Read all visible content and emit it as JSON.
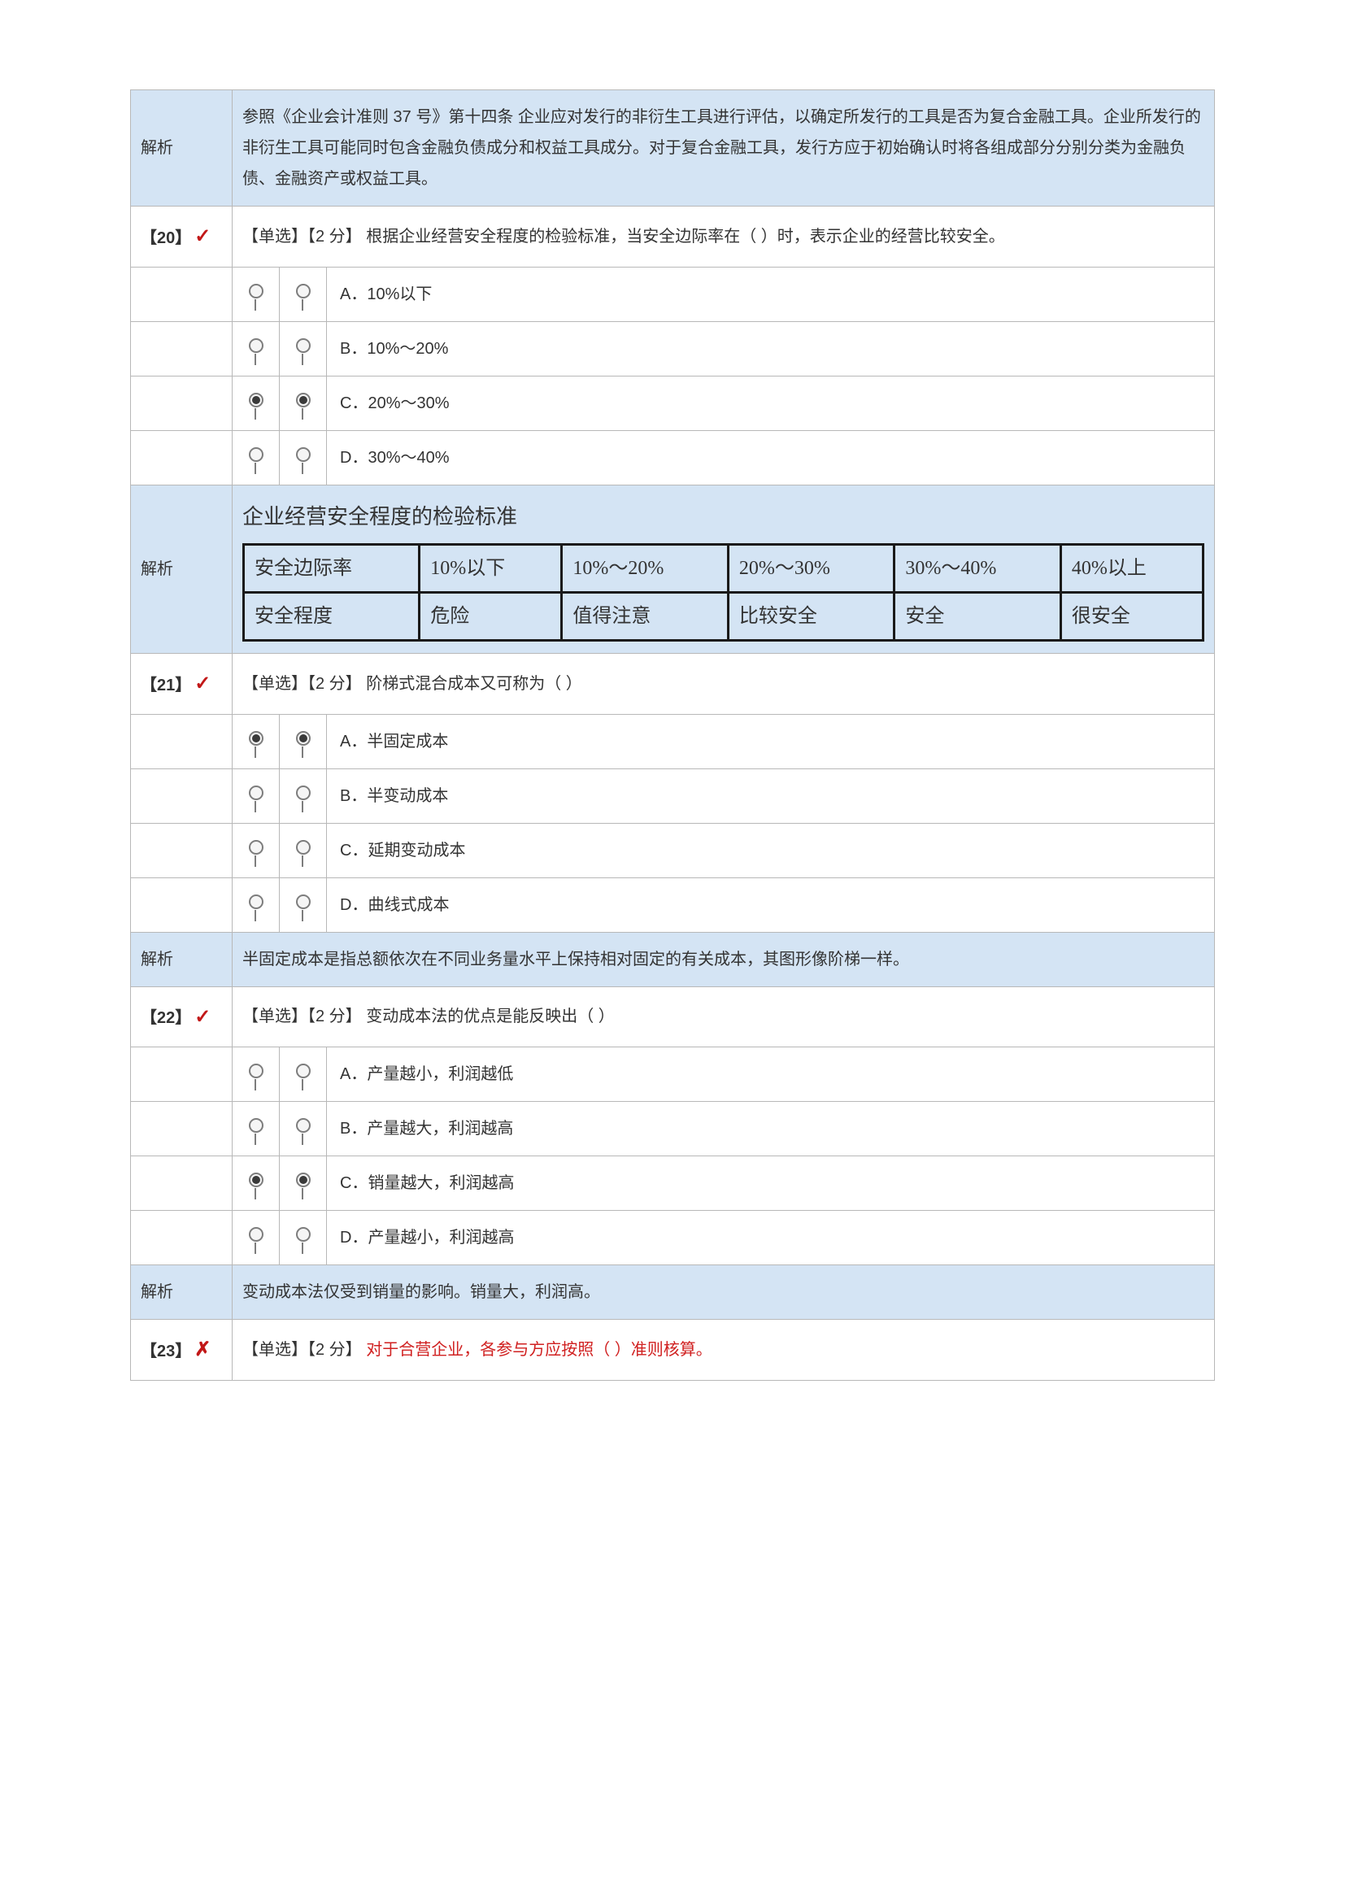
{
  "colors": {
    "analysis_bg": "#d4e4f4",
    "border": "#b8b8b8",
    "inner_border": "#1a1a1a",
    "mark": "#c21818",
    "red_text": "#d02020"
  },
  "analysis_label": "解析",
  "pre_analysis": {
    "text": "参照《企业会计准则 37 号》第十四条 企业应对发行的非衍生工具进行评估，以确定所发行的工具是否为复合金融工具。企业所发行的非衍生工具可能同时包含金融负债成分和权益工具成分。对于复合金融工具，发行方应于初始确认时将各组成部分分别分类为金融负债、金融资产或权益工具。"
  },
  "q20": {
    "num": "【20】",
    "mark": "✓",
    "prompt": "【单选】【2 分】 根据企业经营安全程度的检验标准，当安全边际率在（ ）时，表示企业的经营比较安全。",
    "opts": [
      {
        "label": "A．10%以下",
        "sel": false
      },
      {
        "label": "B．10%～20%",
        "sel": false
      },
      {
        "label": "C．20%～30%",
        "sel": true
      },
      {
        "label": "D．30%～40%",
        "sel": false
      }
    ],
    "analysis_title": "企业经营安全程度的检验标准",
    "table": {
      "r1": [
        "安全边际率",
        "10%以下",
        "10%～20%",
        "20%～30%",
        "30%～40%",
        "40%以上"
      ],
      "r2": [
        "安全程度",
        "危险",
        "值得注意",
        "比较安全",
        "安全",
        "很安全"
      ]
    }
  },
  "q21": {
    "num": "【21】",
    "mark": "✓",
    "prompt": "【单选】【2 分】 阶梯式混合成本又可称为（ ）",
    "opts": [
      {
        "label": "A．半固定成本",
        "sel": true
      },
      {
        "label": "B．半变动成本",
        "sel": false
      },
      {
        "label": "C．延期变动成本",
        "sel": false
      },
      {
        "label": "D．曲线式成本",
        "sel": false
      }
    ],
    "analysis": "半固定成本是指总额依次在不同业务量水平上保持相对固定的有关成本，其图形像阶梯一样。"
  },
  "q22": {
    "num": "【22】",
    "mark": "✓",
    "prompt": "【单选】【2 分】 变动成本法的优点是能反映出（ ）",
    "opts": [
      {
        "label": "A．产量越小，利润越低",
        "sel": false
      },
      {
        "label": "B．产量越大，利润越高",
        "sel": false
      },
      {
        "label": "C．销量越大，利润越高",
        "sel": true
      },
      {
        "label": "D．产量越小，利润越高",
        "sel": false
      }
    ],
    "analysis": "变动成本法仅受到销量的影响。销量大，利润高。"
  },
  "q23": {
    "num": "【23】",
    "mark": "✗",
    "prompt_prefix": "【单选】【2 分】 ",
    "prompt_red": "对于合营企业，各参与方应按照（ ）准则核算。"
  }
}
